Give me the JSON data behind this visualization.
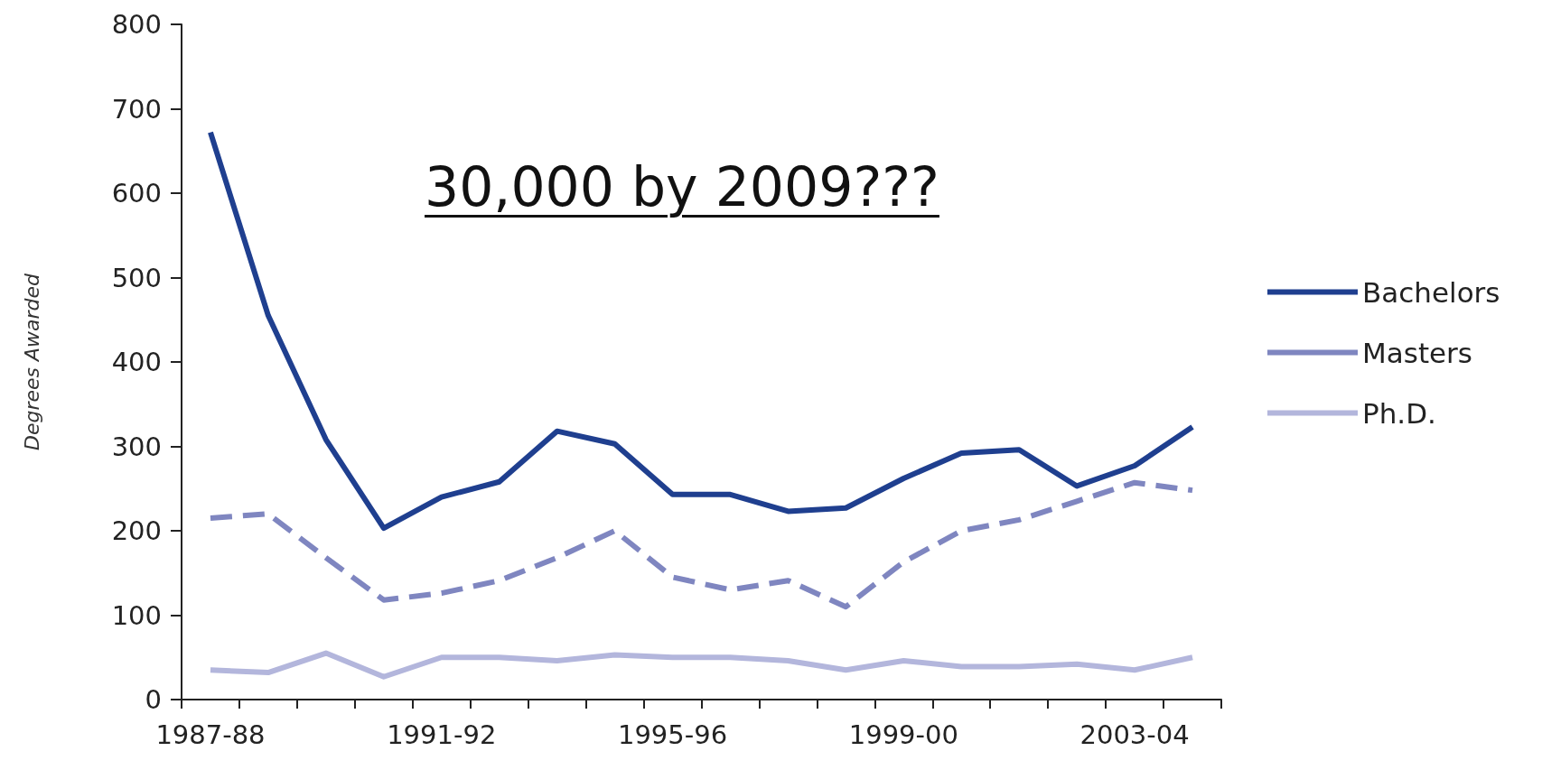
{
  "chart_data": {
    "type": "line",
    "title": "30,000 by 2009???",
    "ylabel": "Degrees Awarded",
    "categories": [
      "1987-88",
      null,
      null,
      null,
      "1991-92",
      null,
      null,
      null,
      "1995-96",
      null,
      null,
      null,
      "1999-00",
      null,
      null,
      null,
      "2003-04",
      null
    ],
    "series": [
      {
        "name": "Bachelors",
        "color": "#1f3f8f",
        "line_style": "solid",
        "values": [
          672,
          455,
          308,
          203,
          240,
          258,
          318,
          303,
          243,
          243,
          223,
          227,
          262,
          292,
          296,
          253,
          277,
          323
        ]
      },
      {
        "name": "Masters",
        "color": "#7f86c0",
        "line_style": "dashed",
        "values": [
          215,
          220,
          168,
          118,
          126,
          141,
          168,
          200,
          145,
          130,
          141,
          110,
          163,
          200,
          213,
          235,
          257,
          248
        ]
      },
      {
        "name": "Ph.D.",
        "color": "#b3b6dc",
        "line_style": "solid",
        "values": [
          35,
          32,
          55,
          27,
          50,
          50,
          46,
          53,
          50,
          50,
          46,
          35,
          46,
          39,
          39,
          42,
          35,
          50
        ]
      }
    ],
    "ylim": [
      0,
      800
    ],
    "yticks": [
      0,
      100,
      200,
      300,
      400,
      500,
      600,
      700,
      800
    ],
    "grid": false,
    "legend": "right",
    "marker": "none"
  }
}
